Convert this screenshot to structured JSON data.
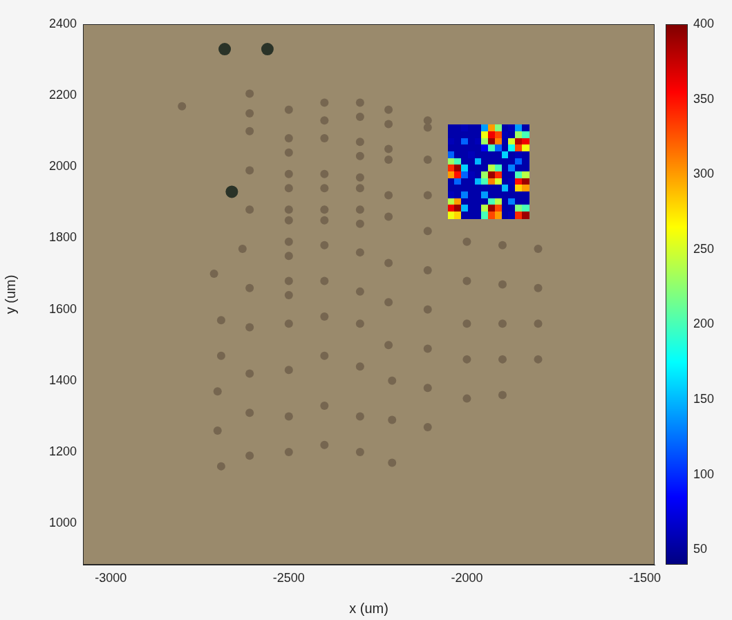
{
  "chart_data": {
    "type": "scatter",
    "x_label": "x (um)",
    "y_label": "y (um)",
    "xlim": [
      -3078,
      -1473
    ],
    "xticks": [
      -3000,
      -2500,
      -2000,
      -1500
    ],
    "ylim": [
      884,
      2400
    ],
    "yticks": [
      1000,
      1200,
      1400,
      1600,
      1800,
      2000,
      2200,
      2400
    ],
    "grid": false,
    "series": [
      {
        "color": "#766650",
        "marker": "circle",
        "x": [
          -2800,
          -2610,
          -2610,
          -2610,
          -2610,
          -2610,
          -2630,
          -2610,
          -2610,
          -2610,
          -2610,
          -2610,
          -2710,
          -2690,
          -2690,
          -2700,
          -2700,
          -2690,
          -2500,
          -2500,
          -2500,
          -2500,
          -2500,
          -2500,
          -2500,
          -2500,
          -2500,
          -2500,
          -2500,
          -2500,
          -2500,
          -2500,
          -2500,
          -2400,
          -2400,
          -2400,
          -2400,
          -2400,
          -2400,
          -2400,
          -2400,
          -2400,
          -2400,
          -2400,
          -2400,
          -2400,
          -2300,
          -2300,
          -2300,
          -2300,
          -2300,
          -2300,
          -2300,
          -2300,
          -2300,
          -2300,
          -2300,
          -2300,
          -2300,
          -2300,
          -2220,
          -2220,
          -2220,
          -2220,
          -2220,
          -2220,
          -2220,
          -2220,
          -2220,
          -2210,
          -2210,
          -2210,
          -2110,
          -2110,
          -2110,
          -2110,
          -2110,
          -2110,
          -2110,
          -2110,
          -2110,
          -2110,
          -2000,
          -2000,
          -2000,
          -2000,
          -2000,
          -1900,
          -1900,
          -1900,
          -1900,
          -1900,
          -1800,
          -1800,
          -1800,
          -1800
        ],
        "y": [
          2170,
          2205,
          2150,
          2100,
          1990,
          1880,
          1770,
          1660,
          1550,
          1420,
          1310,
          1190,
          1700,
          1570,
          1470,
          1370,
          1260,
          1160,
          2160,
          2080,
          2040,
          1980,
          1940,
          1880,
          1850,
          1790,
          1750,
          1680,
          1640,
          1560,
          1430,
          1300,
          1200,
          2180,
          2130,
          2080,
          1980,
          1940,
          1880,
          1850,
          1780,
          1680,
          1580,
          1470,
          1330,
          1220,
          2180,
          2140,
          2070,
          2030,
          1970,
          1940,
          1880,
          1840,
          1760,
          1650,
          1560,
          1440,
          1300,
          1200,
          2160,
          2120,
          2050,
          2020,
          1920,
          1860,
          1730,
          1620,
          1500,
          1400,
          1290,
          1170,
          2130,
          2110,
          2020,
          1920,
          1820,
          1710,
          1600,
          1490,
          1380,
          1270,
          1790,
          1680,
          1560,
          1460,
          1350,
          1780,
          1670,
          1560,
          1460,
          1360,
          1770,
          1660,
          1560,
          1460
        ]
      },
      {
        "color": "#2a3328",
        "marker": "circle",
        "x": [
          -2680,
          -2660,
          -2560
        ],
        "y": [
          2330,
          1930,
          2330
        ]
      }
    ],
    "heatmap": {
      "x_range": [
        -2053,
        -1826
      ],
      "y_range": [
        1855,
        2117
      ],
      "z": [
        [
          55,
          55,
          60,
          55,
          55,
          140,
          300,
          220,
          55,
          60,
          140,
          55
        ],
        [
          55,
          55,
          55,
          55,
          55,
          260,
          360,
          330,
          60,
          55,
          230,
          200
        ],
        [
          60,
          55,
          120,
          55,
          60,
          230,
          390,
          310,
          55,
          250,
          380,
          360
        ],
        [
          55,
          55,
          55,
          55,
          55,
          80,
          200,
          120,
          55,
          180,
          330,
          260
        ],
        [
          120,
          55,
          55,
          60,
          55,
          55,
          55,
          55,
          160,
          55,
          60,
          55
        ],
        [
          230,
          200,
          55,
          55,
          150,
          55,
          55,
          55,
          55,
          55,
          120,
          55
        ],
        [
          340,
          390,
          160,
          55,
          55,
          55,
          240,
          200,
          55,
          130,
          55,
          55
        ],
        [
          300,
          350,
          120,
          60,
          55,
          230,
          390,
          340,
          55,
          55,
          200,
          240
        ],
        [
          55,
          120,
          55,
          55,
          150,
          200,
          310,
          250,
          55,
          60,
          350,
          390
        ],
        [
          55,
          55,
          55,
          55,
          55,
          55,
          55,
          55,
          150,
          55,
          280,
          300
        ],
        [
          60,
          55,
          130,
          55,
          55,
          140,
          55,
          55,
          55,
          55,
          55,
          55
        ],
        [
          240,
          300,
          55,
          55,
          55,
          55,
          200,
          240,
          55,
          130,
          55,
          55
        ],
        [
          360,
          390,
          150,
          55,
          55,
          240,
          390,
          330,
          55,
          55,
          220,
          200
        ],
        [
          260,
          280,
          55,
          55,
          55,
          200,
          330,
          300,
          55,
          60,
          340,
          390
        ]
      ],
      "colorbar_range": [
        40,
        400
      ],
      "colorbar_ticks": [
        50,
        100,
        150,
        200,
        250,
        300,
        350,
        400
      ]
    }
  }
}
